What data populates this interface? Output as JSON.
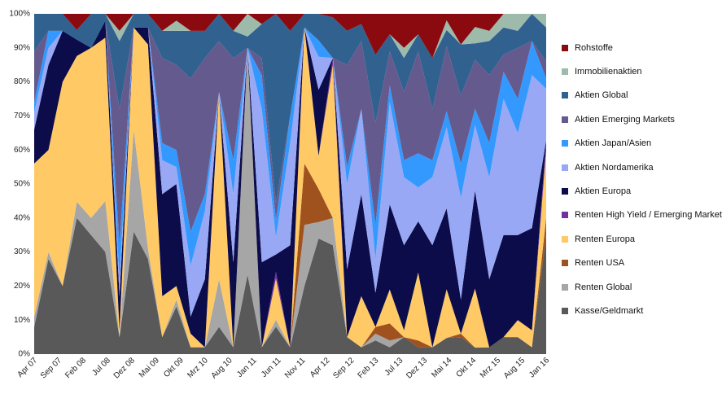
{
  "chart_data": {
    "type": "area",
    "stacked": true,
    "normalized": true,
    "title": "",
    "xlabel": "",
    "ylabel": "",
    "ylim": [
      0,
      100
    ],
    "y_ticks": [
      "0%",
      "10%",
      "20%",
      "30%",
      "40%",
      "50%",
      "60%",
      "70%",
      "80%",
      "90%",
      "100%"
    ],
    "x_ticks": [
      "Apr 07",
      "Sep 07",
      "Feb 08",
      "Jul 08",
      "Dez 08",
      "Mai 09",
      "Okt 09",
      "Mrz 10",
      "Aug 10",
      "Jan 11",
      "Jun 11",
      "Nov 11",
      "Apr 12",
      "Sep 12",
      "Feb 13",
      "Jul 13",
      "Dez 13",
      "Mai 14",
      "Okt 14",
      "Mrz 15",
      "Aug 15",
      "Jan 16"
    ],
    "legend_position": "right",
    "grid": false,
    "series_order_note_bottom_to_top": true,
    "series": [
      {
        "name": "Kasse/Geldmarkt",
        "color": "#595959",
        "values": [
          8,
          28,
          20,
          42,
          35,
          30,
          5,
          36,
          28,
          5,
          14,
          2,
          2,
          8,
          2,
          14,
          2,
          8,
          2,
          20,
          35,
          32,
          5,
          2,
          4,
          2,
          5,
          2,
          2,
          5,
          5,
          2,
          2,
          5,
          5,
          2,
          35
        ]
      },
      {
        "name": "Renten Global",
        "color": "#a6a6a6",
        "values": [
          3,
          2,
          0,
          5,
          5,
          15,
          0,
          30,
          3,
          0,
          2,
          0,
          0,
          14,
          0,
          40,
          0,
          2,
          0,
          18,
          5,
          8,
          0,
          0,
          2,
          2,
          0,
          0,
          0,
          0,
          0,
          0,
          0,
          0,
          0,
          0,
          0
        ]
      },
      {
        "name": "Renten USA",
        "color": "#a0521e",
        "values": [
          0,
          0,
          0,
          0,
          0,
          0,
          0,
          0,
          0,
          0,
          0,
          0,
          0,
          0,
          0,
          0,
          0,
          0,
          0,
          18,
          10,
          0,
          0,
          0,
          2,
          5,
          0,
          2,
          0,
          0,
          1,
          0,
          0,
          0,
          0,
          0,
          5
        ]
      },
      {
        "name": "Renten Europa",
        "color": "#ffc966",
        "values": [
          45,
          30,
          60,
          45,
          50,
          48,
          2,
          30,
          60,
          12,
          4,
          4,
          0,
          55,
          0,
          0,
          0,
          12,
          0,
          40,
          10,
          45,
          0,
          15,
          0,
          10,
          2,
          20,
          0,
          15,
          0,
          18,
          0,
          0,
          5,
          5,
          20
        ]
      },
      {
        "name": "Renten High Yield / Emerging Markets",
        "color": "#7030a0",
        "values": [
          0,
          0,
          0,
          0,
          0,
          0,
          0,
          0,
          0,
          0,
          0,
          0,
          0,
          0,
          0,
          0,
          0,
          2,
          0,
          0,
          0,
          2,
          0,
          0,
          0,
          0,
          0,
          0,
          0,
          0,
          0,
          0,
          0,
          0,
          0,
          0,
          3
        ]
      },
      {
        "name": "Aktien Europa",
        "color": "#0c0c4a",
        "values": [
          10,
          25,
          15,
          5,
          0,
          5,
          10,
          0,
          5,
          30,
          30,
          5,
          20,
          0,
          25,
          0,
          25,
          5,
          30,
          0,
          20,
          0,
          20,
          30,
          10,
          25,
          25,
          15,
          30,
          25,
          10,
          30,
          20,
          30,
          25,
          30,
          0
        ]
      },
      {
        "name": "Aktien Nordamerika",
        "color": "#99a8f5",
        "values": [
          5,
          5,
          0,
          0,
          0,
          0,
          5,
          0,
          0,
          10,
          5,
          15,
          20,
          0,
          20,
          0,
          45,
          5,
          30,
          0,
          10,
          0,
          25,
          25,
          10,
          30,
          20,
          10,
          20,
          25,
          30,
          20,
          30,
          40,
          30,
          45,
          15
        ]
      },
      {
        "name": "Aktien Japan/Asien",
        "color": "#3399ff",
        "values": [
          3,
          5,
          0,
          0,
          0,
          0,
          10,
          0,
          0,
          5,
          5,
          10,
          5,
          0,
          10,
          0,
          10,
          5,
          8,
          0,
          5,
          0,
          5,
          0,
          10,
          5,
          5,
          10,
          5,
          5,
          10,
          5,
          10,
          8,
          10,
          10,
          3
        ]
      },
      {
        "name": "Aktien Emerging Markets",
        "color": "#655a8e",
        "values": [
          15,
          0,
          0,
          0,
          0,
          0,
          40,
          0,
          0,
          25,
          25,
          45,
          40,
          15,
          30,
          0,
          5,
          5,
          0,
          0,
          0,
          0,
          30,
          20,
          30,
          10,
          20,
          30,
          15,
          20,
          20,
          15,
          20,
          5,
          15,
          0,
          5
        ]
      },
      {
        "name": "Aktien Global",
        "color": "#30618f",
        "values": [
          11,
          5,
          5,
          3,
          10,
          2,
          20,
          4,
          4,
          8,
          10,
          14,
          8,
          8,
          8,
          2,
          10,
          55,
          25,
          4,
          8,
          12,
          10,
          5,
          20,
          5,
          10,
          5,
          15,
          5,
          15,
          5,
          10,
          8,
          5,
          8,
          10
        ]
      },
      {
        "name": "Immobilienaktien",
        "color": "#9ebaab",
        "values": [
          0,
          0,
          0,
          0,
          0,
          0,
          3,
          0,
          0,
          0,
          3,
          0,
          0,
          0,
          0,
          4,
          0,
          0,
          0,
          0,
          0,
          0,
          0,
          0,
          0,
          0,
          3,
          0,
          0,
          3,
          0,
          5,
          3,
          4,
          5,
          0,
          4
        ]
      },
      {
        "name": "Rohstoffe",
        "color": "#8b0a10",
        "values": [
          0,
          0,
          0,
          5,
          0,
          0,
          5,
          0,
          0,
          5,
          2,
          5,
          5,
          0,
          5,
          0,
          3,
          0,
          5,
          0,
          0,
          1,
          5,
          3,
          12,
          6,
          10,
          6,
          13,
          2,
          9,
          4,
          5,
          0,
          0,
          0,
          0
        ]
      }
    ]
  }
}
